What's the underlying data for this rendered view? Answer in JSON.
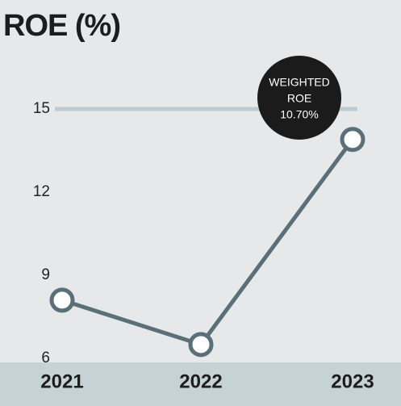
{
  "chart_data": {
    "type": "line",
    "title": "ROE (%)",
    "categories": [
      "2021",
      "2022",
      "2023"
    ],
    "series": [
      {
        "name": "ROE",
        "color": "#5b6f79",
        "values": [
          8.1,
          6.5,
          13.9
        ]
      }
    ],
    "ylim": [
      6,
      15
    ],
    "yticks": [
      6,
      9,
      12,
      15
    ],
    "grid": true,
    "annotation": [
      "WEIGHTED",
      "ROE",
      "10.70%"
    ]
  }
}
